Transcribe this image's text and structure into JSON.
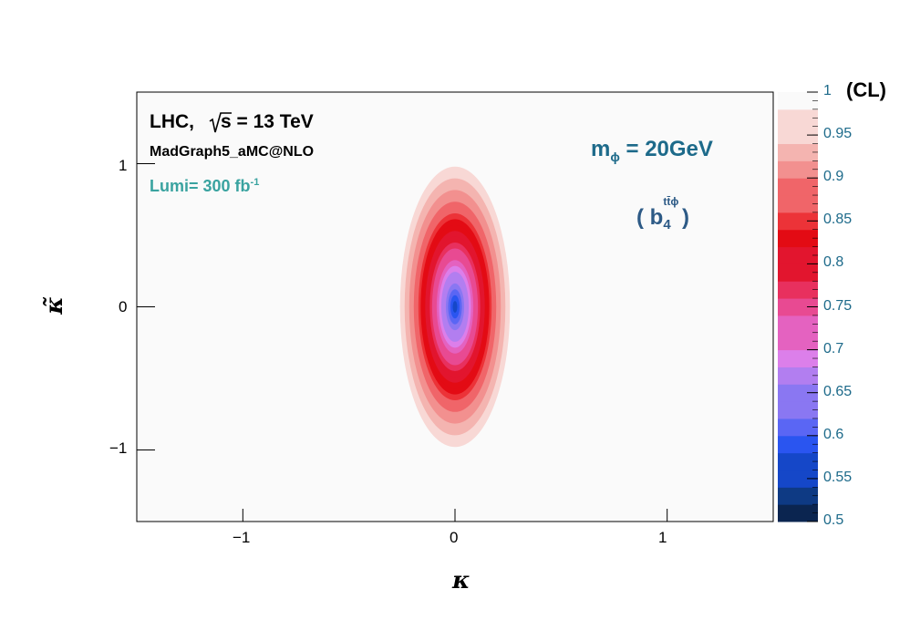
{
  "chart_data": {
    "type": "heatmap",
    "x_axis": {
      "label": "κ",
      "range": [
        -1.5,
        1.5
      ],
      "ticks": [
        "−1",
        "0",
        "1"
      ],
      "tick_values": [
        -1,
        0,
        1
      ]
    },
    "y_axis": {
      "label": "κ̃",
      "range": [
        -1.5,
        1.5
      ],
      "ticks": [
        "−1",
        "0",
        "1"
      ],
      "tick_values": [
        -1,
        0,
        1
      ]
    },
    "z_axis": {
      "title": "(CL)",
      "range": [
        0.5,
        1.0
      ],
      "ticks": [
        "0.5",
        "0.55",
        "0.6",
        "0.65",
        "0.7",
        "0.75",
        "0.8",
        "0.85",
        "0.9",
        "0.95",
        "1"
      ],
      "tick_values": [
        0.5,
        0.55,
        0.6,
        0.65,
        0.7,
        0.75,
        0.8,
        0.85,
        0.9,
        0.95,
        1.0
      ]
    },
    "contour_levels": 25,
    "ellipse": {
      "center": [
        0,
        0
      ],
      "kappa_half_width_at_cl1": 0.27,
      "kappa_tilde_half_height_at_cl1": 1.02
    },
    "annotations": {
      "collider": "LHC,",
      "sqrt_s": "s = 13 TeV",
      "generator": "MadGraph5_aMC@NLO",
      "lumi": "Lumi= 300 fb",
      "lumi_exp": "-1",
      "mass_label_m": "m",
      "mass_label_sub": "ϕ",
      "mass_label_value": " = 20GeV",
      "coeff_open": "( b",
      "coeff_sup": "tt̄ϕ",
      "coeff_sub": "4",
      "coeff_close": " )"
    },
    "colors": {
      "palette": [
        "#0b2550",
        "#0e3a84",
        "#1547c8",
        "#2a55f0",
        "#5a66f4",
        "#8a77f2",
        "#b27ef0",
        "#dc7fea",
        "#e462c0",
        "#e84a92",
        "#e8305e",
        "#e2152e",
        "#e30b14",
        "#ec3338",
        "#f06569",
        "#f2908f",
        "#f4b4b0",
        "#f8d8d5",
        "#fafafa"
      ],
      "annotation_blue": "#1d6a8a",
      "lumi_teal": "#3aa3a0"
    }
  }
}
